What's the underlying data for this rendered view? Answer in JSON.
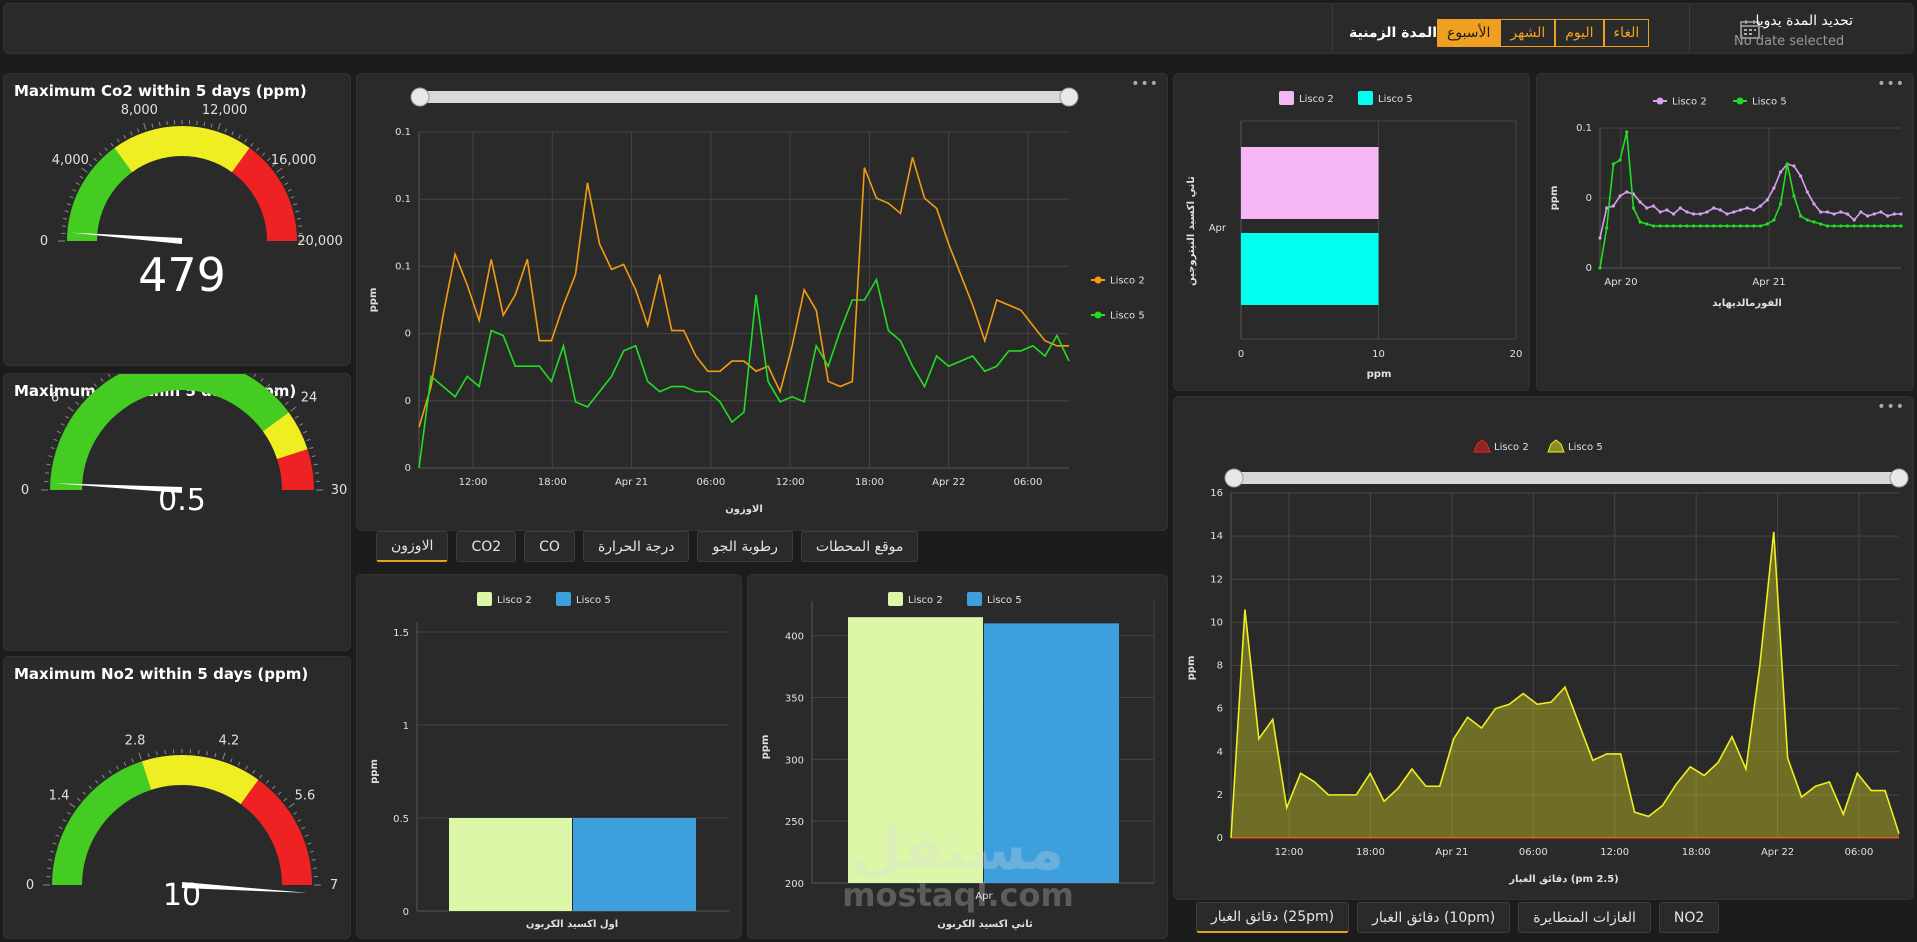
{
  "topbar": {
    "manual_title": "تحديد المدة يدويا",
    "manual_sub": "No date selected",
    "period_label": "المدة الزمنية",
    "buttons": [
      "الغاء",
      "اليوم",
      "الشهر",
      "الأسبوع"
    ],
    "active_button": "الأسبوع"
  },
  "colors": {
    "lisco2_orange": "#f39c12",
    "lisco5_green": "#22dd22",
    "lisco2_pink": "#f5b6f5",
    "lisco5_cyan": "#00ffee",
    "lisco2_red": "#ee2222",
    "lisco5_yellow": "#eeee22",
    "lisco2_lightgreen": "#dcf7a8",
    "lisco5_blue": "#3d9fdc",
    "accent": "#f0a020"
  },
  "gauges": [
    {
      "title": "Maximum Co2 within 5 days (ppm)",
      "value": 479,
      "value_label": "479",
      "max": 20000,
      "tick_labels": [
        "0",
        "4,000",
        "8,000",
        "12,000",
        "16,000",
        "20,000"
      ],
      "bands": [
        {
          "from": 0,
          "to": 6000,
          "color": "#44cc22"
        },
        {
          "from": 6000,
          "to": 14000,
          "color": "#eeee22"
        },
        {
          "from": 14000,
          "to": 20000,
          "color": "#ee2222"
        }
      ]
    },
    {
      "title": "Maximum Co within 5 days (ppm)",
      "value": 0.5,
      "value_label": "0.5",
      "max": 30,
      "tick_labels": [
        "0",
        "6",
        "12",
        "18",
        "24",
        "30"
      ],
      "bands": [
        {
          "from": 0,
          "to": 24,
          "color": "#44cc22"
        },
        {
          "from": 24,
          "to": 27,
          "color": "#eeee22"
        },
        {
          "from": 27,
          "to": 30,
          "color": "#ee2222"
        }
      ]
    },
    {
      "title": "Maximum No2 within 5 days (ppm)",
      "value": 10,
      "value_label": "10",
      "max": 7,
      "tick_labels": [
        "0",
        "1.4",
        "2.8",
        "4.2",
        "5.6",
        "7"
      ],
      "bands": [
        {
          "from": 0,
          "to": 2.8,
          "color": "#44cc22"
        },
        {
          "from": 2.8,
          "to": 4.9,
          "color": "#eeee22"
        },
        {
          "from": 4.9,
          "to": 7,
          "color": "#ee2222"
        }
      ]
    }
  ],
  "tabs_mid": [
    "موقع المحطات",
    "رطوبة الجو",
    "درجة الحرارة",
    "CO",
    "CO2",
    "الاوزون"
  ],
  "tabs_mid_active": "الاوزون",
  "tabs_right": [
    "NO2",
    "الغازات المتطايرة",
    "دقائق الغبار (10pm)",
    "دقائق الغبار (25pm)"
  ],
  "tabs_right_active": "دقائق الغبار (25pm)",
  "watermark": {
    "ar": "مستقل",
    "en": "mostaql.com"
  },
  "chart_data": [
    {
      "id": "ozone",
      "type": "line",
      "xlabel": "الاوزون",
      "ylabel": "ppm",
      "ytick_labels": [
        "0",
        "0",
        "0",
        "0.1",
        "0.1",
        "0.1"
      ],
      "xtick_labels": [
        "12:00",
        "18:00",
        "Apr 21",
        "06:00",
        "12:00",
        "18:00",
        "Apr 22",
        "06:00"
      ],
      "legend": "right",
      "series": [
        {
          "name": "Lisco 2",
          "color": "#f39c12",
          "values": [
            0.8,
            1.6,
            3.0,
            4.2,
            3.6,
            2.9,
            4.1,
            3.0,
            3.4,
            4.1,
            2.5,
            2.5,
            3.2,
            3.8,
            5.6,
            4.4,
            3.9,
            4.0,
            3.5,
            2.8,
            3.8,
            2.7,
            2.7,
            2.2,
            1.9,
            1.9,
            2.1,
            2.1,
            1.9,
            2.0,
            1.5,
            2.4,
            3.5,
            3.1,
            1.7,
            1.6,
            1.7,
            5.9,
            5.3,
            5.2,
            5.0,
            6.1,
            5.3,
            5.1,
            4.4,
            3.8,
            3.2,
            2.5,
            3.3,
            3.2,
            3.1,
            2.8,
            2.5,
            2.4,
            2.4
          ]
        },
        {
          "name": "Lisco 5",
          "color": "#22dd22",
          "values": [
            0.0,
            1.8,
            1.6,
            1.4,
            1.8,
            1.6,
            2.7,
            2.6,
            2.0,
            2.0,
            2.0,
            1.7,
            2.4,
            1.3,
            1.2,
            1.5,
            1.8,
            2.3,
            2.4,
            1.7,
            1.5,
            1.6,
            1.6,
            1.5,
            1.5,
            1.3,
            0.9,
            1.1,
            3.4,
            1.7,
            1.3,
            1.4,
            1.3,
            2.4,
            2.0,
            2.7,
            3.3,
            3.3,
            3.7,
            2.7,
            2.5,
            2.0,
            1.6,
            2.2,
            2.0,
            2.1,
            2.2,
            1.9,
            2.0,
            2.3,
            2.3,
            2.4,
            2.2,
            2.6,
            2.1
          ]
        }
      ]
    },
    {
      "id": "no2-bar",
      "type": "bar",
      "orientation": "horizontal",
      "categories": [
        "Apr"
      ],
      "ylabel": "ثاني اكسيد النيتروجين",
      "xlabel": "ppm",
      "xtick_labels": [
        "0",
        "10",
        "20"
      ],
      "xlim": [
        0,
        20
      ],
      "legend": "top",
      "series": [
        {
          "name": "Lisco 2",
          "color": "#f5b6f5",
          "values": [
            10
          ]
        },
        {
          "name": "Lisco 5",
          "color": "#00ffee",
          "values": [
            10
          ]
        }
      ]
    },
    {
      "id": "formaldehyde",
      "type": "line",
      "xlabel": "الفورمالديهايد",
      "ylabel": "ppm",
      "ytick_labels": [
        "0",
        "0",
        "0.1"
      ],
      "xtick_labels": [
        "Apr 20",
        "Apr 21"
      ],
      "legend": "top",
      "series": [
        {
          "name": "Lisco 2",
          "color": "#d8a0f0",
          "values": [
            0.75,
            1.5,
            1.55,
            1.8,
            1.9,
            1.85,
            1.65,
            1.5,
            1.55,
            1.4,
            1.45,
            1.35,
            1.5,
            1.4,
            1.35,
            1.35,
            1.4,
            1.5,
            1.45,
            1.35,
            1.4,
            1.45,
            1.5,
            1.45,
            1.55,
            1.7,
            2.0,
            2.4,
            2.6,
            2.55,
            2.3,
            1.9,
            1.6,
            1.4,
            1.4,
            1.35,
            1.4,
            1.35,
            1.2,
            1.4,
            1.3,
            1.35,
            1.4,
            1.3,
            1.35,
            1.35
          ]
        },
        {
          "name": "Lisco 5",
          "color": "#22dd22",
          "values": [
            0.0,
            1.0,
            2.6,
            2.7,
            3.4,
            1.5,
            1.15,
            1.1,
            1.05,
            1.05,
            1.05,
            1.05,
            1.05,
            1.05,
            1.05,
            1.05,
            1.05,
            1.05,
            1.05,
            1.05,
            1.05,
            1.05,
            1.05,
            1.05,
            1.05,
            1.1,
            1.2,
            1.6,
            2.6,
            1.8,
            1.3,
            1.2,
            1.15,
            1.1,
            1.05,
            1.05,
            1.05,
            1.05,
            1.05,
            1.05,
            1.05,
            1.05,
            1.05,
            1.05,
            1.05,
            1.05
          ]
        }
      ]
    },
    {
      "id": "pm25",
      "type": "area",
      "xlabel": "دقائق الغبار (pm 2.5)",
      "ylabel": "ppm",
      "ylim": [
        0,
        16
      ],
      "ytick_labels": [
        "0",
        "2",
        "4",
        "6",
        "8",
        "10",
        "12",
        "14",
        "16"
      ],
      "xtick_labels": [
        "12:00",
        "18:00",
        "Apr 21",
        "06:00",
        "12:00",
        "18:00",
        "Apr 22",
        "06:00"
      ],
      "legend": "top",
      "series": [
        {
          "name": "Lisco 2",
          "color": "#ee2222",
          "values": [
            0,
            0,
            0,
            0,
            0,
            0,
            0,
            0,
            0,
            0,
            0,
            0,
            0,
            0,
            0,
            0,
            0,
            0,
            0,
            0,
            0,
            0,
            0,
            0,
            0,
            0,
            0,
            0,
            0,
            0,
            0,
            0,
            0,
            0,
            0,
            0,
            0,
            0,
            0,
            0,
            0,
            0,
            0,
            0,
            0,
            0,
            0,
            0,
            0,
            0,
            0,
            0,
            0,
            0,
            0,
            0,
            0,
            0,
            0,
            0,
            0,
            0,
            0,
            0,
            0
          ]
        },
        {
          "name": "Lisco 5",
          "color": "#eeee22",
          "values": [
            0,
            10.6,
            4.6,
            5.5,
            1.4,
            3.0,
            2.6,
            2.0,
            2.0,
            2.0,
            3.0,
            1.7,
            2.3,
            3.2,
            2.4,
            2.4,
            4.6,
            5.6,
            5.1,
            6.0,
            6.2,
            6.7,
            6.2,
            6.3,
            7.0,
            5.3,
            3.6,
            3.9,
            3.9,
            1.2,
            1.0,
            1.5,
            2.5,
            3.3,
            2.9,
            3.5,
            4.7,
            3.2,
            8.0,
            14.2,
            3.7,
            1.9,
            2.4,
            2.6,
            1.1,
            3.0,
            2.2,
            2.2,
            0.2
          ]
        }
      ]
    },
    {
      "id": "co-bar",
      "type": "bar",
      "xlabel": "اول اكسيد الكربون",
      "ylabel": "ppm",
      "ylim": [
        0,
        1.5
      ],
      "ytick_labels": [
        "0",
        "0.5",
        "1",
        "1.5"
      ],
      "legend": "top",
      "series": [
        {
          "name": "Lisco 2",
          "color": "#dcf7a8",
          "values": [
            0.5
          ]
        },
        {
          "name": "Lisco 5",
          "color": "#3d9fdc",
          "values": [
            0.5
          ]
        }
      ]
    },
    {
      "id": "co2-bar",
      "type": "bar",
      "categories": [
        "Apr"
      ],
      "xlabel": "ثاني اكسيد الكربون",
      "ylabel": "ppm",
      "ylim": [
        200,
        420
      ],
      "ytick_labels": [
        "200",
        "250",
        "300",
        "350",
        "400"
      ],
      "legend": "top",
      "series": [
        {
          "name": "Lisco 2",
          "color": "#dcf7a8",
          "values": [
            415
          ]
        },
        {
          "name": "Lisco 5",
          "color": "#3d9fdc",
          "values": [
            410
          ]
        }
      ]
    }
  ]
}
